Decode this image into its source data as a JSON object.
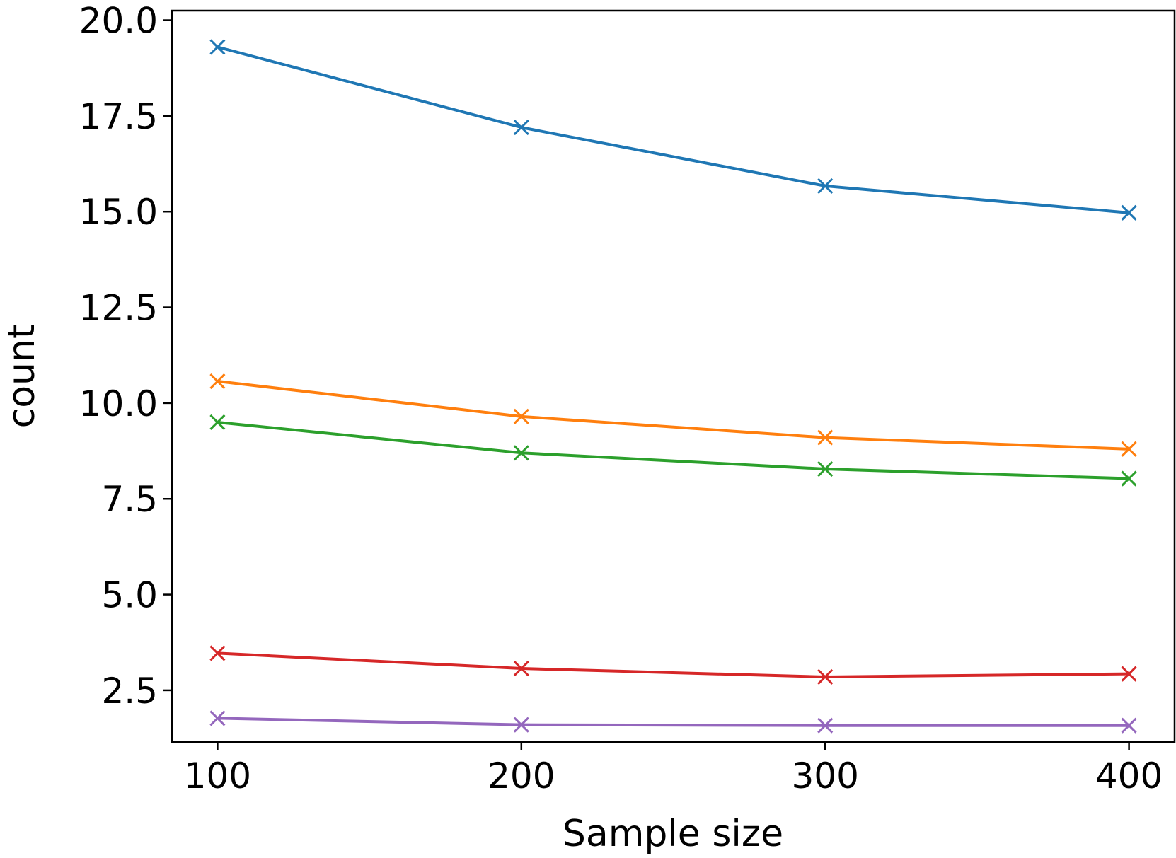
{
  "chart_data": {
    "type": "line",
    "title": "",
    "xlabel": "Sample size",
    "ylabel": "count",
    "x": [
      100,
      200,
      300,
      400
    ],
    "xlim": [
      85,
      415
    ],
    "ylim": [
      1.15,
      20.25
    ],
    "xticks": [
      100,
      200,
      300,
      400
    ],
    "xtick_labels": [
      "100",
      "200",
      "300",
      "400"
    ],
    "yticks": [
      2.5,
      5.0,
      7.5,
      10.0,
      12.5,
      15.0,
      17.5,
      20.0
    ],
    "ytick_labels": [
      "2.5",
      "5.0",
      "7.5",
      "10.0",
      "12.5",
      "15.0",
      "17.5",
      "20.0"
    ],
    "grid": false,
    "marker": "x",
    "series": [
      {
        "color": "#1f77b4",
        "values": [
          19.3,
          17.2,
          15.67,
          14.97
        ]
      },
      {
        "color": "#ff7f0e",
        "values": [
          10.57,
          9.65,
          9.1,
          8.8
        ]
      },
      {
        "color": "#2ca02c",
        "values": [
          9.5,
          8.7,
          8.28,
          8.03
        ]
      },
      {
        "color": "#d62728",
        "values": [
          3.47,
          3.07,
          2.85,
          2.93
        ]
      },
      {
        "color": "#9467bd",
        "values": [
          1.77,
          1.6,
          1.58,
          1.58
        ]
      }
    ]
  }
}
